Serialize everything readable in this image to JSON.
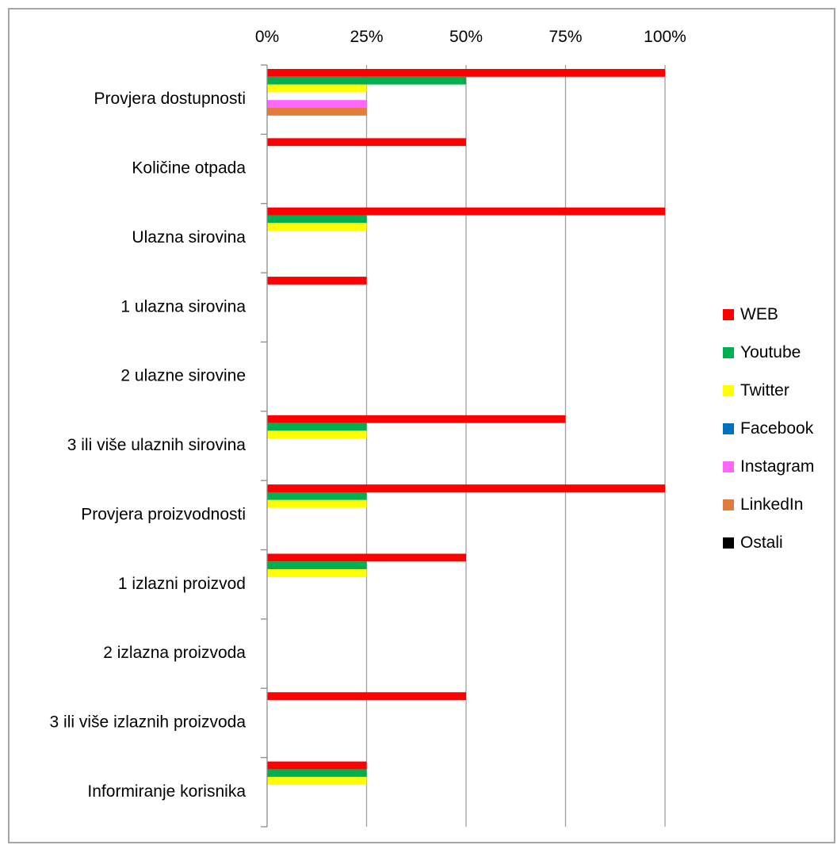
{
  "chart_data": {
    "type": "bar",
    "orientation": "horizontal",
    "categories": [
      "Provjera dostupnosti",
      "Količine otpada",
      "Ulazna sirovina",
      "1 ulazna sirovina",
      "2 ulazne sirovine",
      "3 ili više ulaznih sirovina",
      "Provjera proizvodnosti",
      "1 izlazni proizvod",
      "2 izlazna proizvoda",
      "3 ili više izlaznih proizvoda",
      "Informiranje korisnika"
    ],
    "series": [
      {
        "name": "WEB",
        "color": "#ff0000",
        "values": [
          100,
          50,
          100,
          25,
          0,
          75,
          100,
          50,
          0,
          50,
          25
        ]
      },
      {
        "name": "Youtube",
        "color": "#00b050",
        "values": [
          50,
          0,
          25,
          0,
          0,
          25,
          25,
          25,
          0,
          0,
          25
        ]
      },
      {
        "name": "Twitter",
        "color": "#ffff00",
        "values": [
          25,
          0,
          25,
          0,
          0,
          25,
          25,
          25,
          0,
          0,
          25
        ]
      },
      {
        "name": "Facebook",
        "color": "#0070c0",
        "values": [
          0,
          0,
          0,
          0,
          0,
          0,
          0,
          0,
          0,
          0,
          0
        ]
      },
      {
        "name": "Instagram",
        "color": "#ff66ff",
        "values": [
          25,
          0,
          0,
          0,
          0,
          0,
          0,
          0,
          0,
          0,
          0
        ]
      },
      {
        "name": "LinkedIn",
        "color": "#e07c3c",
        "values": [
          25,
          0,
          0,
          0,
          0,
          0,
          0,
          0,
          0,
          0,
          0
        ]
      },
      {
        "name": "Ostali",
        "color": "#000000",
        "values": [
          0,
          0,
          0,
          0,
          0,
          0,
          0,
          0,
          0,
          0,
          0
        ]
      }
    ],
    "x_ticks": [
      "0%",
      "25%",
      "50%",
      "75%",
      "100%"
    ],
    "xlim": [
      0,
      100
    ],
    "x_axis_position": "top",
    "grid": true,
    "legend_position": "right",
    "title": "",
    "xlabel": "",
    "ylabel": ""
  }
}
